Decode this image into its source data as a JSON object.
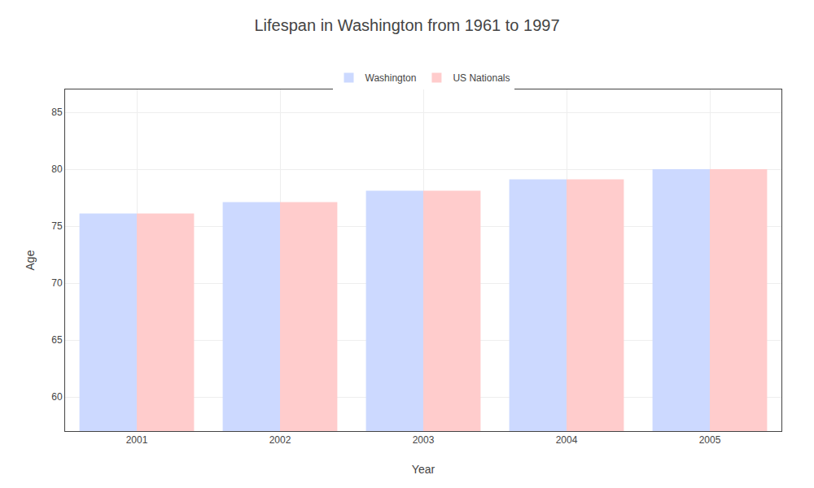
{
  "chart_data": {
    "type": "bar",
    "title": "Lifespan in Washington from 1961 to 1997",
    "xlabel": "Year",
    "ylabel": "Age",
    "categories": [
      "2001",
      "2002",
      "2003",
      "2004",
      "2005"
    ],
    "series": [
      {
        "name": "Washington",
        "color": "#ccd9ff",
        "values": [
          76.1,
          77.1,
          78.1,
          79.1,
          80.0
        ]
      },
      {
        "name": "US Nationals",
        "color": "#ffcccc",
        "values": [
          76.1,
          77.1,
          78.1,
          79.1,
          80.0
        ]
      }
    ],
    "ylim": [
      57,
      87
    ],
    "yticks": [
      60,
      65,
      70,
      75,
      80,
      85
    ],
    "grid": true,
    "legend": "top"
  }
}
